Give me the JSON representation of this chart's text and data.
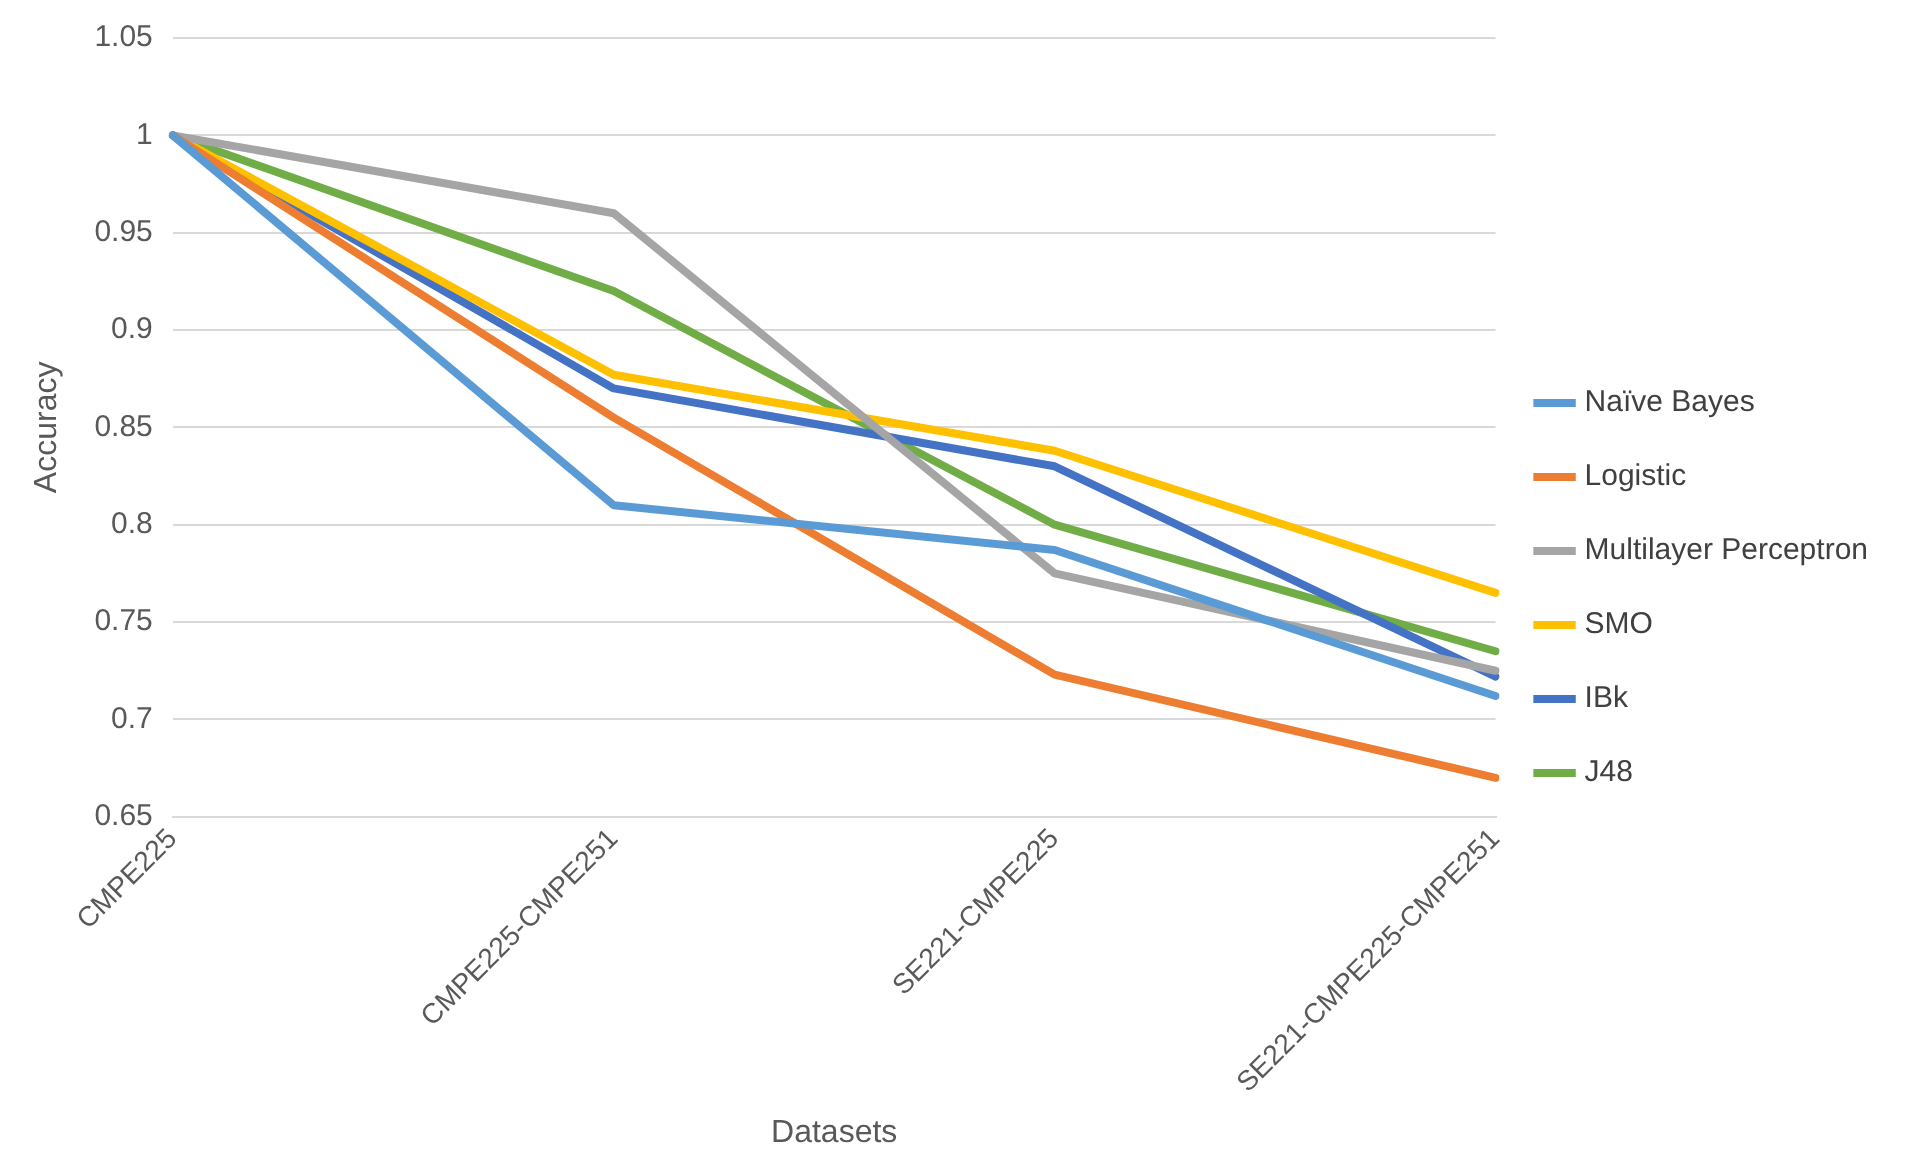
{
  "chart_data": {
    "type": "line",
    "xlabel": "Datasets",
    "ylabel": "Accuracy",
    "categories": [
      "CMPE225",
      "CMPE225-CMPE251",
      "SE221-CMPE225",
      "SE221-CMPE225-CMPE251"
    ],
    "series": [
      {
        "name": "Naïve Bayes",
        "color": "#5b9bd5",
        "values": [
          1,
          0.81,
          0.787,
          0.712
        ]
      },
      {
        "name": "Logistic",
        "color": "#ed7d31",
        "values": [
          1,
          0.855,
          0.723,
          0.67
        ]
      },
      {
        "name": "Multilayer Perceptron",
        "color": "#a5a5a5",
        "values": [
          1,
          0.96,
          0.775,
          0.725
        ]
      },
      {
        "name": "SMO",
        "color": "#ffc000",
        "values": [
          1,
          0.877,
          0.838,
          0.765
        ]
      },
      {
        "name": "IBk",
        "color": "#4472c4",
        "values": [
          1,
          0.87,
          0.83,
          0.722
        ]
      },
      {
        "name": "J48",
        "color": "#70ad47",
        "values": [
          1,
          0.92,
          0.8,
          0.735
        ]
      }
    ],
    "ylim": [
      0.65,
      1.05
    ],
    "yticks": [
      0.65,
      0.7,
      0.75,
      0.8,
      0.85,
      0.9,
      0.95,
      1,
      1.05
    ],
    "grid": "y",
    "legend": "right",
    "marker": "none",
    "line_style": "solid"
  }
}
